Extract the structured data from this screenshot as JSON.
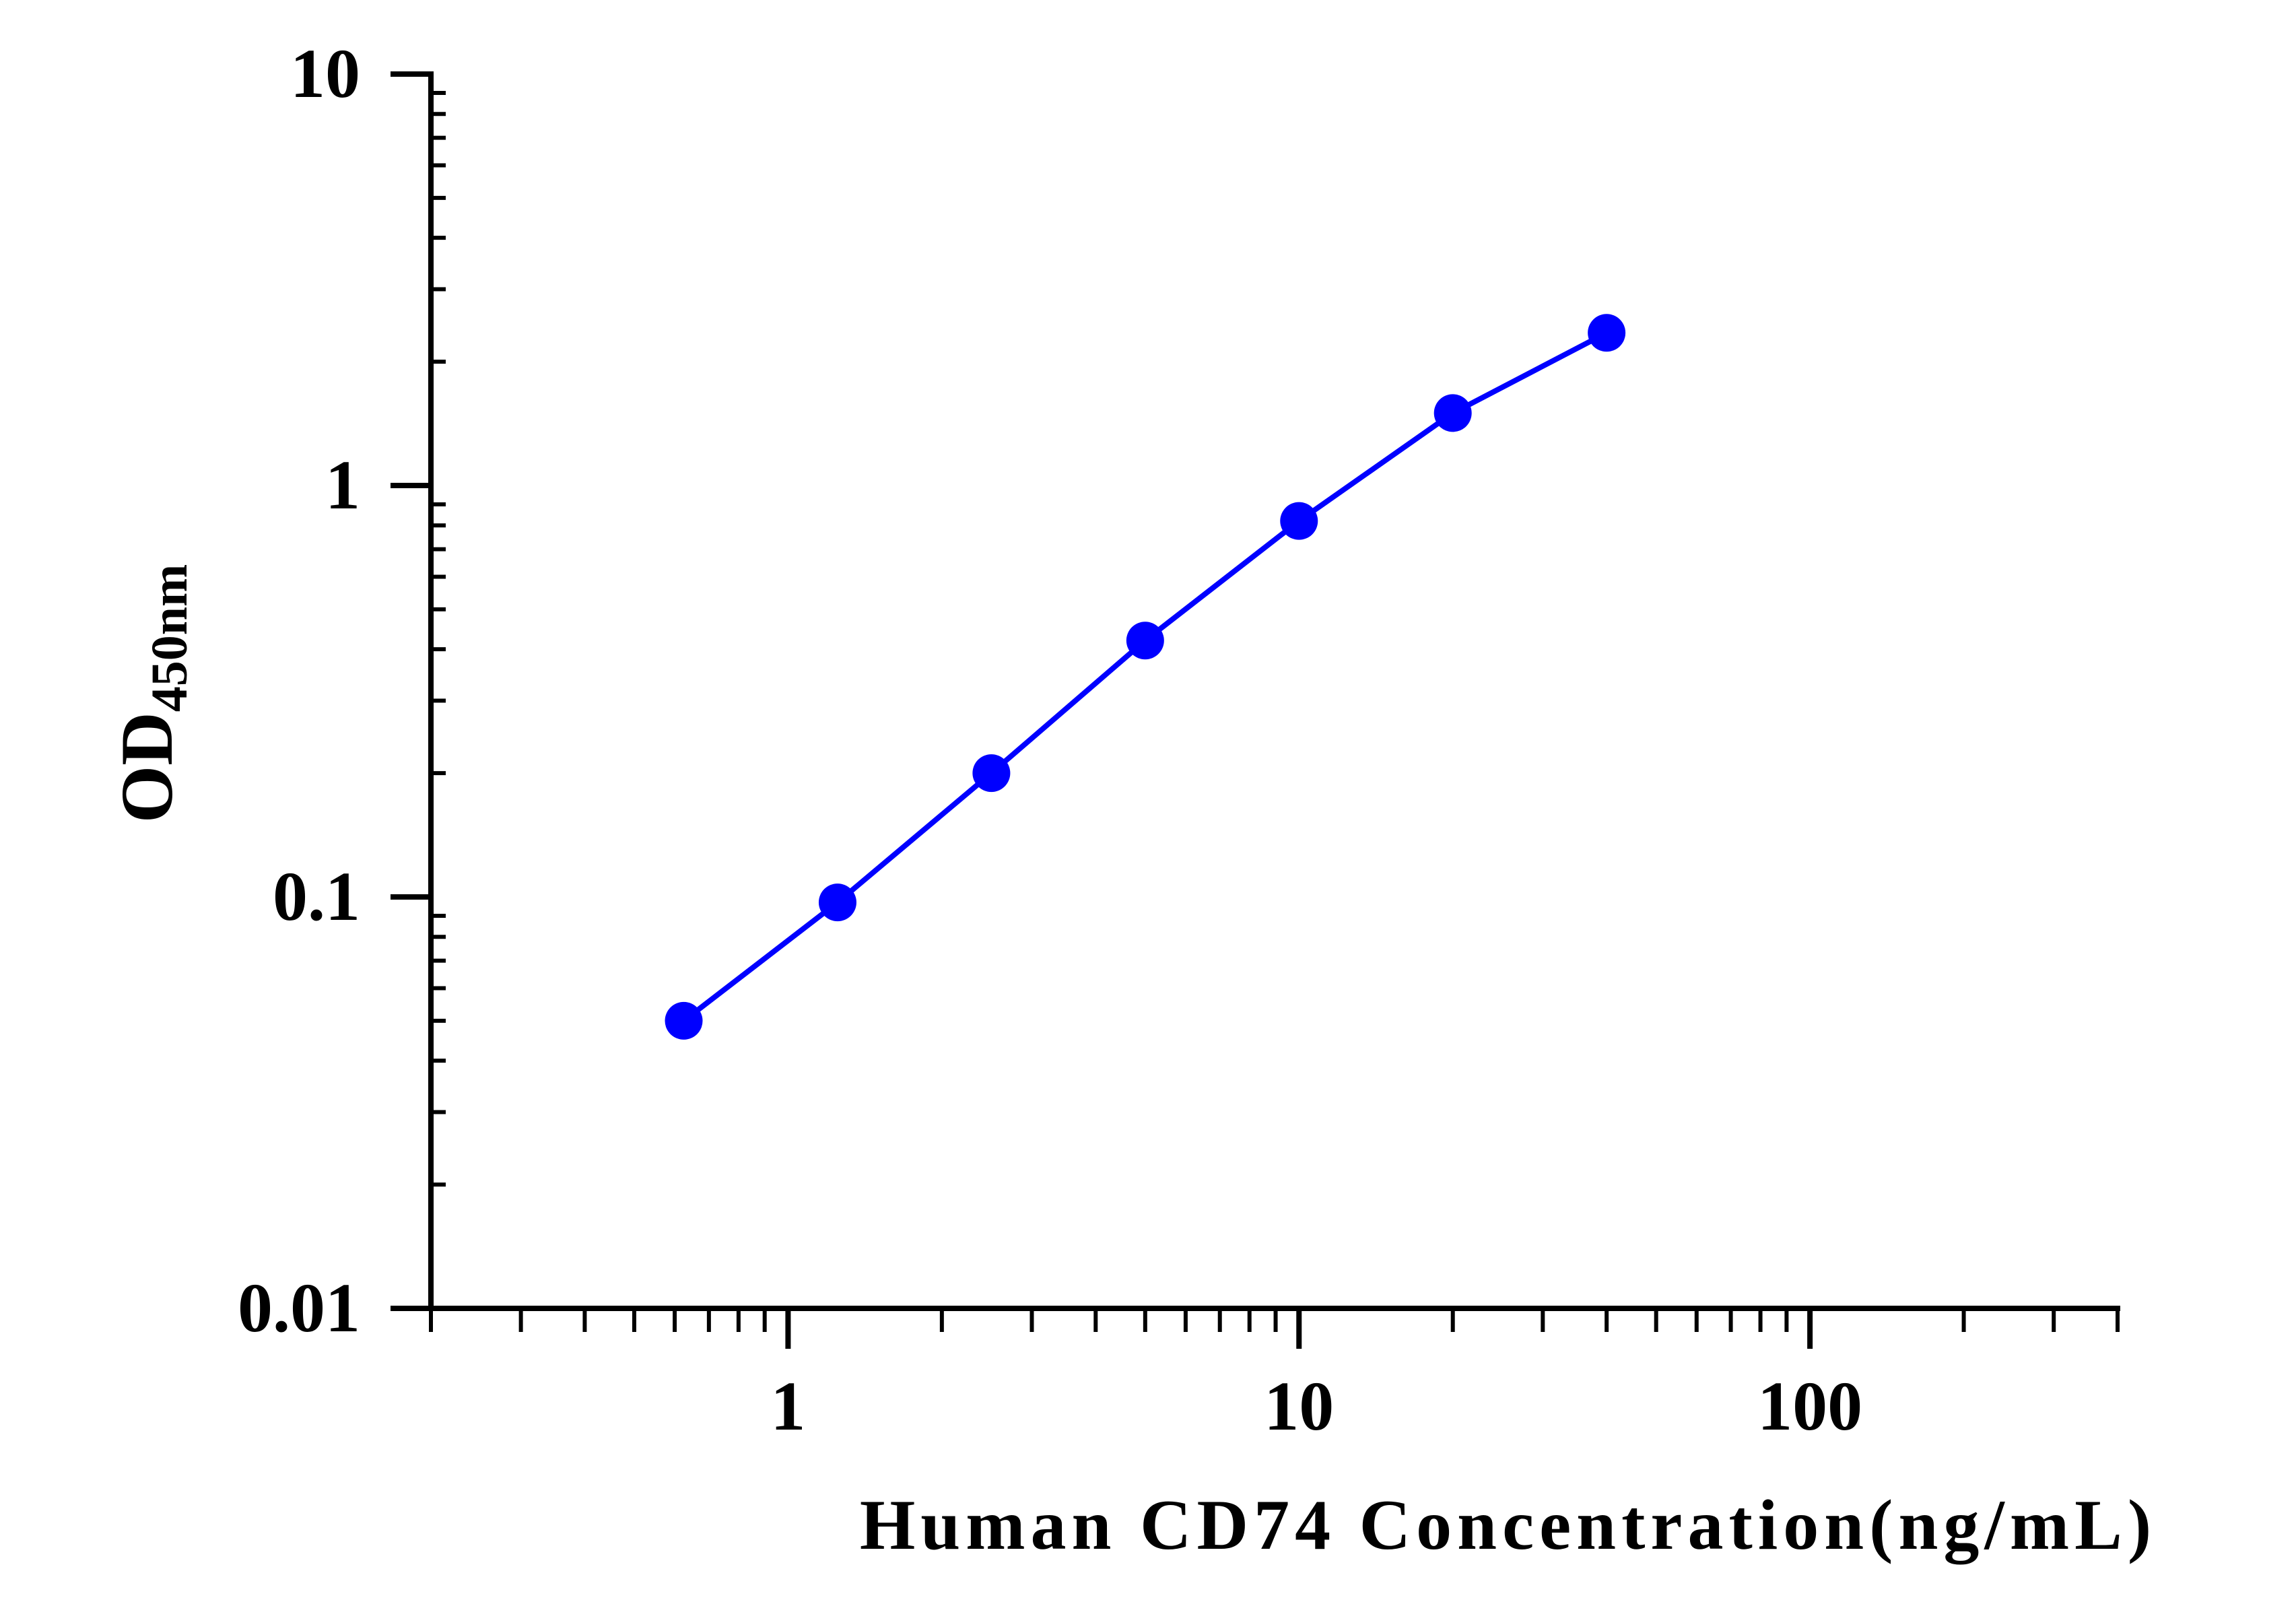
{
  "chart_data": {
    "type": "line",
    "title": "",
    "xlabel": "Human CD74 Concentration(ng/mL)",
    "ylabel_main": "OD",
    "ylabel_sub": "450nm",
    "xscale": "log",
    "yscale": "log",
    "xlim": [
      0.2,
      400
    ],
    "ylim": [
      0.01,
      10
    ],
    "x_ticks": [
      "1",
      "10",
      "100"
    ],
    "y_ticks": [
      "0.01",
      "0.1",
      "1",
      "10"
    ],
    "grid": false,
    "legend": "none",
    "series": [
      {
        "color": "#0000ff",
        "x": [
          0.625,
          1.25,
          2.5,
          5,
          10,
          20,
          40
        ],
        "y": [
          0.05,
          0.097,
          0.2,
          0.42,
          0.82,
          1.5,
          2.35
        ]
      }
    ]
  }
}
